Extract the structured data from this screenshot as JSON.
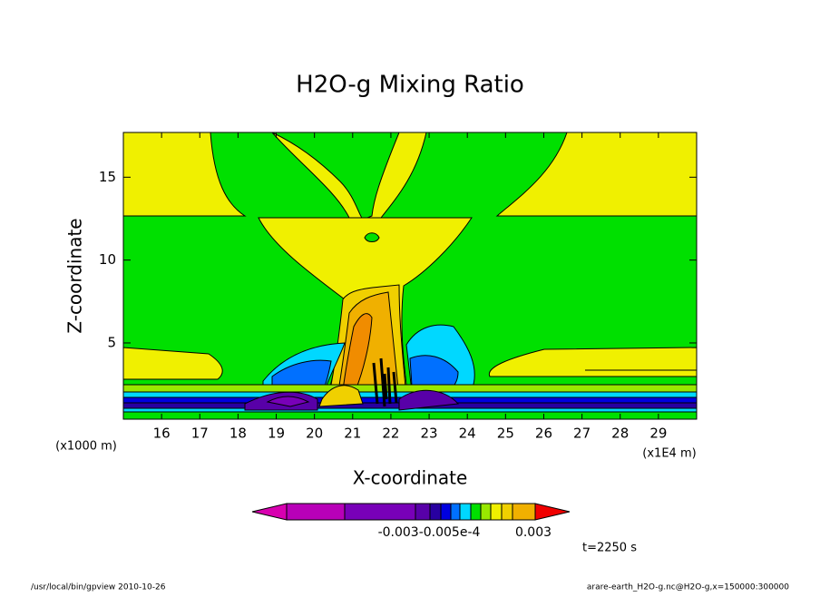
{
  "chart_data": {
    "type": "contour",
    "title": "H2O-g Mixing Ratio",
    "x_label": "X-coordinate",
    "y_label": "Z-coordinate",
    "x_unit_left": "(x1000 m)",
    "x_unit_right": "(x1E4 m)",
    "xlim": [
      15,
      30
    ],
    "xticks": [
      16,
      17,
      18,
      19,
      20,
      21,
      22,
      23,
      24,
      25,
      26,
      27,
      28,
      29
    ],
    "ylim": [
      0.4,
      17.7
    ],
    "yticks": [
      5,
      10,
      15
    ],
    "colorbar": {
      "colors": [
        "#d800b0",
        "#b800b8",
        "#7800b8",
        "#5800a8",
        "#2800a0",
        "#0000e0",
        "#0070ff",
        "#00d8ff",
        "#00e000",
        "#98e800",
        "#f0f000",
        "#f0d000",
        "#f0b000",
        "#f08c00",
        "#f00000"
      ],
      "labels": [
        "-0.003-0.005e-4",
        "0.003"
      ]
    },
    "time_label": "t=2250 s",
    "footer_left": "/usr/local/bin/gpview  2010-10-26",
    "footer_right": "arare-earth_H2O-g.nc@H2O-g,x=150000:300000"
  }
}
